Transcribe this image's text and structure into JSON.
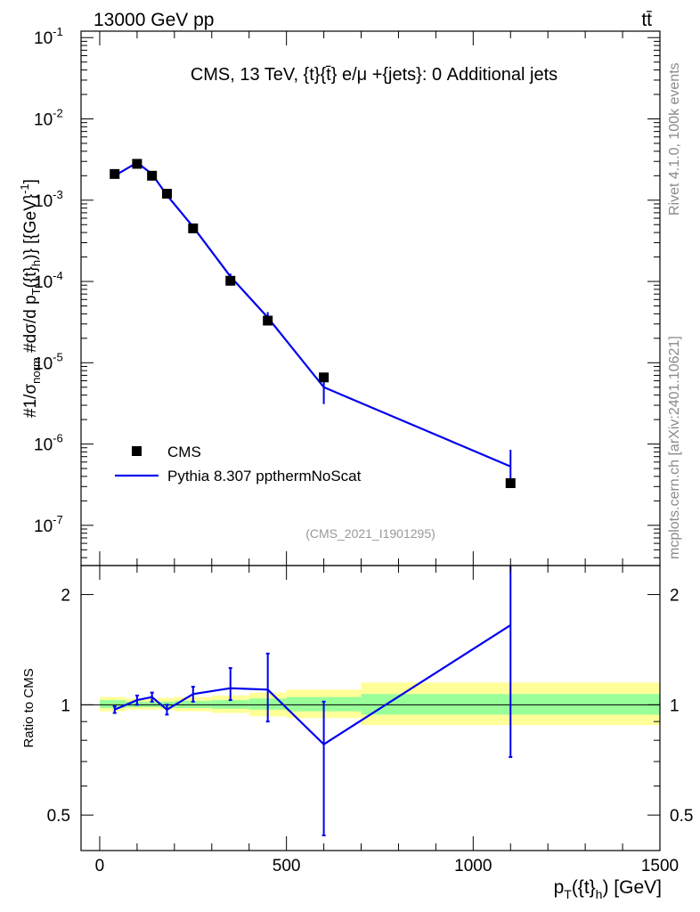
{
  "header": {
    "left": "13000 GeV pp",
    "right": "tt̄"
  },
  "side": {
    "rivet": "Rivet 4.1.0,  100k events",
    "mcplots": "mcplots.cern.ch [arXiv:2401.10621]"
  },
  "chart_data": [
    {
      "type": "scatter",
      "role": "main",
      "title": "CMS, 13 TeV, {t}{t̄} e/μ +{jets}: 0 Additional jets",
      "watermark": "(CMS_2021_I1901295)",
      "yscale": "log",
      "ylabel": "#1/σ_norm #dσ/d p_T({t}_h)} [{GeV}^-1]",
      "y_ticks": [
        "10^-7",
        "10^-6",
        "10^-5",
        "10^-4",
        "10^-3",
        "10^-2",
        "10^-1"
      ],
      "xlim": [
        -50,
        1500
      ],
      "ylim": [
        3.2e-08,
        0.12
      ],
      "legend_position": "lower-left",
      "series": [
        {
          "name": "CMS",
          "kind": "points",
          "color": "#000000",
          "x": [
            40,
            100,
            140,
            180,
            250,
            350,
            450,
            600,
            1100
          ],
          "y": [
            0.0021,
            0.0028,
            0.002,
            0.0012,
            0.00045,
            0.000102,
            3.3e-05,
            6.6e-06,
            3.3e-07
          ]
        },
        {
          "name": "Pythia 8.307 ppthermNoScat",
          "kind": "line",
          "color": "#0000ee",
          "x": [
            40,
            100,
            140,
            180,
            250,
            350,
            450,
            600,
            1100
          ],
          "y": [
            0.002,
            0.0029,
            0.0021,
            0.00115,
            0.00047,
            0.000115,
            3.6e-05,
            5e-06,
            5.3e-07
          ],
          "err_low": [
            0.00195,
            0.0028,
            0.002,
            0.0011,
            0.00044,
            0.000105,
            3.1e-05,
            3.1e-06,
            3e-07
          ],
          "err_high": [
            0.00205,
            0.003,
            0.0022,
            0.0012,
            0.0005,
            0.000125,
            4.2e-05,
            6.8e-06,
            8.5e-07
          ]
        }
      ]
    },
    {
      "type": "line",
      "role": "ratio",
      "ylabel": "Ratio to CMS",
      "xlabel": "p_T({t}_h) [GeV]",
      "yscale": "log",
      "ylim": [
        0.4,
        2.4
      ],
      "y_ticks": [
        "0.5",
        "1",
        "2"
      ],
      "x_ticks": [
        "0",
        "500",
        "1000",
        "1500"
      ],
      "xlim": [
        -50,
        1500
      ],
      "bands": [
        {
          "x0": 0,
          "x1": 70,
          "inner": [
            0.98,
            1.03
          ],
          "outer": [
            0.96,
            1.05
          ]
        },
        {
          "x0": 70,
          "x1": 120,
          "inner": [
            0.985,
            1.02
          ],
          "outer": [
            0.97,
            1.04
          ]
        },
        {
          "x0": 120,
          "x1": 160,
          "inner": [
            0.985,
            1.02
          ],
          "outer": [
            0.97,
            1.04
          ]
        },
        {
          "x0": 160,
          "x1": 200,
          "inner": [
            0.985,
            1.02
          ],
          "outer": [
            0.97,
            1.045
          ]
        },
        {
          "x0": 200,
          "x1": 300,
          "inner": [
            0.98,
            1.025
          ],
          "outer": [
            0.96,
            1.05
          ]
        },
        {
          "x0": 300,
          "x1": 400,
          "inner": [
            0.975,
            1.03
          ],
          "outer": [
            0.95,
            1.06
          ]
        },
        {
          "x0": 400,
          "x1": 500,
          "inner": [
            0.97,
            1.04
          ],
          "outer": [
            0.93,
            1.08
          ]
        },
        {
          "x0": 500,
          "x1": 700,
          "inner": [
            0.96,
            1.05
          ],
          "outer": [
            0.92,
            1.1
          ]
        },
        {
          "x0": 700,
          "x1": 1500,
          "inner": [
            0.94,
            1.07
          ],
          "outer": [
            0.88,
            1.15
          ]
        }
      ],
      "series": [
        {
          "name": "Pythia 8.307 ppthermNoScat",
          "color": "#0000ee",
          "x": [
            40,
            100,
            140,
            180,
            250,
            350,
            450,
            600,
            1100
          ],
          "y": [
            0.97,
            1.03,
            1.05,
            0.97,
            1.07,
            1.11,
            1.1,
            0.78,
            1.65
          ],
          "err_low": [
            0.95,
            1.0,
            1.02,
            0.94,
            1.02,
            1.03,
            0.9,
            0.44,
            0.72
          ],
          "err_high": [
            0.99,
            1.06,
            1.08,
            1.0,
            1.12,
            1.26,
            1.38,
            1.02,
            2.4
          ]
        }
      ]
    }
  ]
}
